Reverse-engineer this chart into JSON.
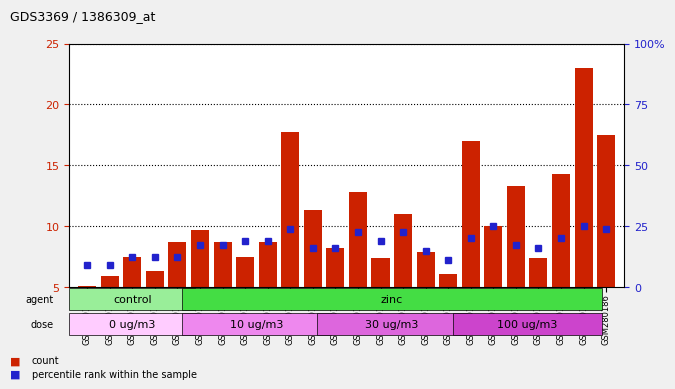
{
  "title": "GDS3369 / 1386309_at",
  "samples": [
    "GSM280163",
    "GSM280164",
    "GSM280165",
    "GSM280166",
    "GSM280167",
    "GSM280168",
    "GSM280169",
    "GSM280170",
    "GSM280171",
    "GSM280172",
    "GSM280173",
    "GSM280174",
    "GSM280175",
    "GSM280176",
    "GSM280177",
    "GSM280178",
    "GSM280179",
    "GSM280180",
    "GSM280181",
    "GSM280182",
    "GSM280183",
    "GSM280184",
    "GSM280185",
    "GSM280186"
  ],
  "count_values": [
    5.1,
    5.9,
    7.5,
    6.3,
    8.7,
    9.7,
    8.7,
    7.5,
    8.7,
    17.7,
    11.3,
    8.2,
    12.8,
    7.4,
    11.0,
    7.9,
    6.1,
    17.0,
    10.0,
    13.3,
    7.4,
    14.3,
    23.0,
    17.5
  ],
  "percentile_values": [
    6.8,
    6.8,
    7.5,
    7.5,
    7.5,
    8.5,
    8.5,
    8.8,
    8.8,
    9.8,
    8.2,
    8.2,
    9.5,
    8.8,
    9.5,
    8.0,
    7.2,
    9.0,
    10.0,
    8.5,
    8.2,
    9.0,
    10.0,
    9.8
  ],
  "count_color": "#cc2200",
  "percentile_color": "#2222cc",
  "ylim_left": [
    5,
    25
  ],
  "ylim_right": [
    0,
    100
  ],
  "yticks_left": [
    5,
    10,
    15,
    20,
    25
  ],
  "yticks_right": [
    0,
    25,
    50,
    75,
    100
  ],
  "agent_groups": [
    {
      "label": "control",
      "start": 0,
      "end": 5,
      "color": "#99ee99"
    },
    {
      "label": "zinc",
      "start": 5,
      "end": 23,
      "color": "#44dd44"
    }
  ],
  "dose_groups": [
    {
      "label": "0 ug/m3",
      "start": 0,
      "end": 5,
      "color": "#ffccff"
    },
    {
      "label": "10 ug/m3",
      "start": 5,
      "end": 11,
      "color": "#ee88ee"
    },
    {
      "label": "30 ug/m3",
      "start": 11,
      "end": 17,
      "color": "#dd66dd"
    },
    {
      "label": "100 ug/m3",
      "start": 17,
      "end": 23,
      "color": "#cc44cc"
    }
  ],
  "bar_width": 0.4,
  "background_color": "#f0f0f0",
  "plot_bg_color": "#ffffff",
  "grid_color": "#000000",
  "ylabel_left_color": "#cc2200",
  "ylabel_right_color": "#2222cc"
}
